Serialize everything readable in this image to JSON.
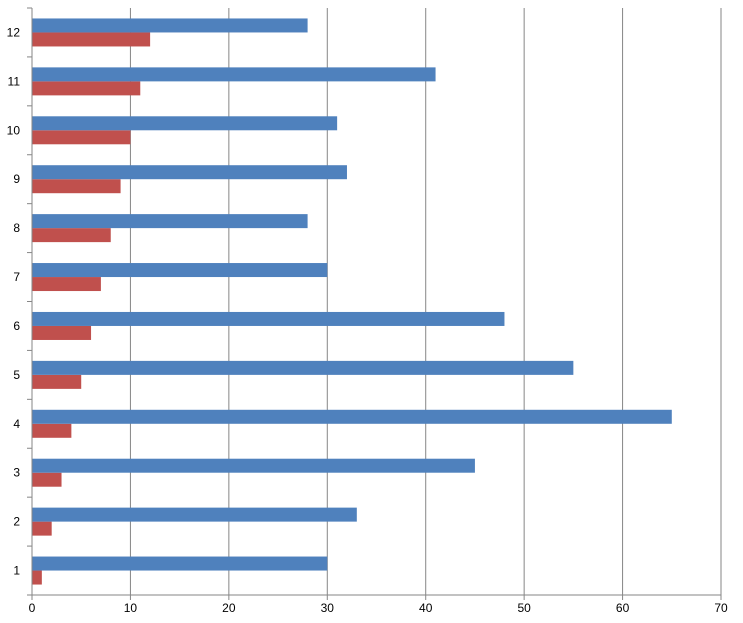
{
  "chart_data": {
    "type": "bar",
    "orientation": "horizontal",
    "title": "",
    "xlabel": "",
    "ylabel": "",
    "categories": [
      "1",
      "2",
      "3",
      "4",
      "5",
      "6",
      "7",
      "8",
      "9",
      "10",
      "11",
      "12"
    ],
    "series": [
      {
        "values": [
          1,
          2,
          3,
          4,
          5,
          6,
          7,
          8,
          9,
          10,
          11,
          12
        ],
        "color": "#C0504D"
      },
      {
        "values": [
          30,
          33,
          45,
          65,
          55,
          48,
          30,
          28,
          32,
          31,
          41,
          28
        ],
        "color": "#4F81BD"
      }
    ],
    "xlim": [
      0,
      70
    ],
    "xticks": [
      "0",
      "10",
      "20",
      "30",
      "40",
      "50",
      "60",
      "70"
    ],
    "grid": "vertical",
    "legend": "none"
  }
}
